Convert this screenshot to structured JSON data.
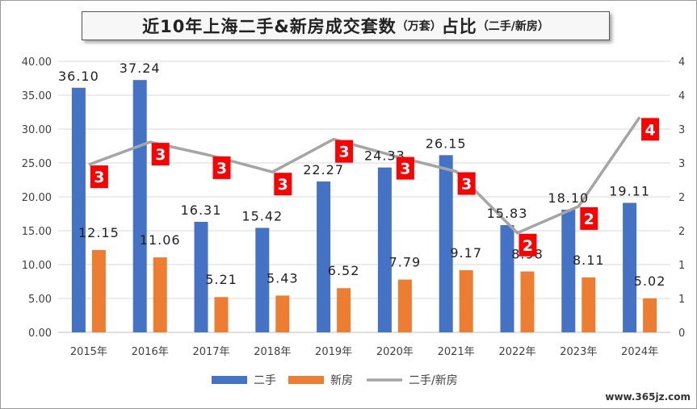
{
  "title": {
    "main": "近10年上海二手&新房成交套数",
    "unit": "（万套）",
    "suffix": "占比",
    "ratio_note": "（二手/新房）"
  },
  "watermark": "www.365jz.com",
  "colors": {
    "second_hand": "#4472c4",
    "new_house": "#ed7d31",
    "ratio": "#a5a5a5",
    "ratio_badge": "#ff0000"
  },
  "chart_data": {
    "type": "bar",
    "categories": [
      "2015年",
      "2016年",
      "2017年",
      "2018年",
      "2019年",
      "2020年",
      "2021年",
      "2022年",
      "2023年",
      "2024年"
    ],
    "series": [
      {
        "name": "二手",
        "type": "bar",
        "axis": "left",
        "values": [
          36.1,
          37.24,
          16.31,
          15.42,
          22.27,
          24.33,
          26.15,
          15.83,
          18.1,
          19.11
        ],
        "labels": [
          "36.10",
          "37.24",
          "16.31",
          "15.42",
          "22.27",
          "24.33",
          "26.15",
          "15.83",
          "18.10",
          "19.11"
        ]
      },
      {
        "name": "新房",
        "type": "bar",
        "axis": "left",
        "values": [
          12.15,
          11.06,
          5.21,
          5.43,
          6.52,
          7.79,
          9.17,
          8.98,
          8.11,
          5.02
        ],
        "labels": [
          "12.15",
          "11.06",
          "5.21",
          "5.43",
          "6.52",
          "7.79",
          "9.17",
          "8.98",
          "8.11",
          "5.02"
        ]
      },
      {
        "name": "二手/新房",
        "type": "line",
        "axis": "right",
        "values": [
          2.97,
          3.37,
          3.13,
          2.84,
          3.42,
          3.12,
          2.85,
          1.76,
          2.23,
          3.81
        ],
        "labels": [
          "3",
          "3",
          "3",
          "3",
          "3",
          "3",
          "3",
          "2",
          "2",
          "4"
        ]
      }
    ],
    "y_left": {
      "range": [
        0,
        40
      ],
      "ticks": [
        "0.00",
        "5.00",
        "10.00",
        "15.00",
        "20.00",
        "25.00",
        "30.00",
        "35.00",
        "40.00"
      ]
    },
    "y_right": {
      "range": [
        0,
        4.8
      ],
      "ticks": [
        "0",
        "1",
        "1",
        "2",
        "2",
        "3",
        "3",
        "4",
        "4"
      ]
    },
    "grid": true,
    "legend": {
      "position": "bottom",
      "entries": [
        "二手",
        "新房",
        "二手/新房"
      ]
    }
  }
}
